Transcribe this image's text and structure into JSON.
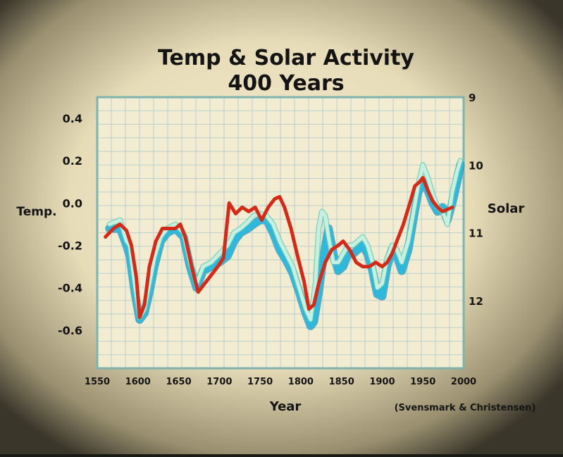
{
  "chart_data": {
    "type": "line",
    "title": "Temp & Solar Activity",
    "subtitle": "400 Years",
    "xlabel": "Year",
    "ylabel_left": "Temp.",
    "ylabel_right": "Solar",
    "credit": "(Svensmark & Christensen)",
    "xlim": [
      1550,
      2000
    ],
    "ylim_left": [
      -0.78,
      0.5
    ],
    "ylim_right": [
      13.0,
      9.0
    ],
    "right_axis_inverted": true,
    "x_ticks": [
      "1550",
      "1600",
      "1650",
      "1700",
      "1750",
      "1800",
      "1850",
      "1900",
      "1950",
      "2000"
    ],
    "y_left_ticks": [
      "0.4",
      "0.2",
      "0.0",
      "-0.2",
      "-0.4",
      "-0.6"
    ],
    "y_left_tick_values": [
      0.4,
      0.2,
      0.0,
      -0.2,
      -0.4,
      -0.6
    ],
    "y_right_ticks": [
      "9",
      "10",
      "11",
      "12"
    ],
    "y_right_tick_values": [
      9,
      10,
      11,
      12
    ],
    "grid": true,
    "series": [
      {
        "axis": "left",
        "color": "#2fb8de",
        "x": [
          1565,
          1578,
          1586,
          1590,
          1596,
          1602,
          1608,
          1614,
          1620,
          1628,
          1636,
          1646,
          1656,
          1664,
          1672,
          1680,
          1690,
          1700,
          1710,
          1718,
          1726,
          1735,
          1742,
          1750,
          1758,
          1766,
          1774,
          1782,
          1790,
          1798,
          1806,
          1812,
          1816,
          1822,
          1828,
          1834,
          1840,
          1846,
          1852,
          1858,
          1864,
          1870,
          1876,
          1882,
          1888,
          1894,
          1900,
          1906,
          1912,
          1918,
          1924,
          1932,
          1938,
          1944,
          1950,
          1956,
          1962,
          1968,
          1974,
          1980,
          1986,
          1992,
          1996
        ],
        "y": [
          -0.12,
          -0.12,
          -0.2,
          -0.25,
          -0.42,
          -0.55,
          -0.52,
          -0.42,
          -0.3,
          -0.18,
          -0.14,
          -0.12,
          -0.16,
          -0.3,
          -0.4,
          -0.32,
          -0.3,
          -0.28,
          -0.25,
          -0.18,
          -0.14,
          -0.12,
          -0.1,
          -0.08,
          -0.08,
          -0.14,
          -0.22,
          -0.27,
          -0.33,
          -0.42,
          -0.52,
          -0.58,
          -0.56,
          -0.42,
          -0.25,
          -0.12,
          -0.24,
          -0.32,
          -0.3,
          -0.24,
          -0.24,
          -0.22,
          -0.2,
          -0.24,
          -0.32,
          -0.43,
          -0.44,
          -0.3,
          -0.22,
          -0.25,
          -0.32,
          -0.22,
          -0.08,
          0.05,
          0.1,
          0.06,
          0.0,
          -0.04,
          -0.02,
          -0.08,
          0.0,
          0.1,
          0.18
        ]
      },
      {
        "axis": "left",
        "color": "#c8f0e0",
        "x": [
          1565,
          1578,
          1586,
          1590,
          1596,
          1602,
          1608,
          1614,
          1620,
          1628,
          1636,
          1646,
          1656,
          1664,
          1672,
          1680,
          1690,
          1700,
          1710,
          1718,
          1726,
          1735,
          1742,
          1750,
          1758,
          1766,
          1774,
          1782,
          1790,
          1798,
          1806,
          1812,
          1818,
          1822,
          1826,
          1830,
          1834,
          1840,
          1846,
          1852,
          1858,
          1864,
          1870,
          1876,
          1882,
          1888,
          1894,
          1900,
          1906,
          1912,
          1918,
          1924,
          1932,
          1938,
          1944,
          1950,
          1956,
          1962,
          1968,
          1974,
          1980,
          1986,
          1992,
          1996
        ],
        "y": [
          -0.1,
          -0.08,
          -0.18,
          -0.2,
          -0.38,
          -0.54,
          -0.5,
          -0.38,
          -0.26,
          -0.16,
          -0.12,
          -0.1,
          -0.14,
          -0.28,
          -0.38,
          -0.3,
          -0.28,
          -0.24,
          -0.2,
          -0.14,
          -0.12,
          -0.09,
          -0.06,
          -0.05,
          -0.06,
          -0.1,
          -0.18,
          -0.24,
          -0.3,
          -0.4,
          -0.5,
          -0.55,
          -0.38,
          -0.12,
          -0.04,
          -0.06,
          -0.16,
          -0.28,
          -0.28,
          -0.24,
          -0.2,
          -0.2,
          -0.18,
          -0.16,
          -0.2,
          -0.28,
          -0.4,
          -0.38,
          -0.26,
          -0.2,
          -0.22,
          -0.28,
          -0.18,
          -0.05,
          0.08,
          0.18,
          0.12,
          0.04,
          -0.02,
          -0.04,
          -0.1,
          0.05,
          0.15,
          0.2
        ]
      },
      {
        "axis": "left",
        "color": "#d42a18",
        "x": [
          1560,
          1570,
          1578,
          1586,
          1592,
          1598,
          1602,
          1608,
          1614,
          1622,
          1630,
          1638,
          1646,
          1652,
          1658,
          1666,
          1674,
          1682,
          1690,
          1698,
          1705,
          1712,
          1720,
          1728,
          1736,
          1744,
          1752,
          1760,
          1768,
          1774,
          1780,
          1788,
          1796,
          1804,
          1810,
          1816,
          1822,
          1830,
          1838,
          1846,
          1852,
          1860,
          1868,
          1876,
          1884,
          1892,
          1900,
          1906,
          1912,
          1918,
          1926,
          1934,
          1940,
          1946,
          1950,
          1956,
          1962,
          1968,
          1974,
          1980,
          1986
        ],
        "y": [
          -0.16,
          -0.12,
          -0.1,
          -0.13,
          -0.2,
          -0.35,
          -0.54,
          -0.48,
          -0.3,
          -0.18,
          -0.12,
          -0.12,
          -0.12,
          -0.1,
          -0.16,
          -0.3,
          -0.42,
          -0.38,
          -0.34,
          -0.3,
          -0.26,
          0.0,
          -0.05,
          -0.02,
          -0.04,
          -0.02,
          -0.08,
          -0.02,
          0.02,
          0.03,
          -0.02,
          -0.12,
          -0.25,
          -0.37,
          -0.5,
          -0.48,
          -0.38,
          -0.28,
          -0.22,
          -0.2,
          -0.18,
          -0.22,
          -0.28,
          -0.3,
          -0.3,
          -0.28,
          -0.3,
          -0.28,
          -0.24,
          -0.18,
          -0.1,
          0.0,
          0.08,
          0.1,
          0.12,
          0.06,
          0.01,
          -0.02,
          -0.04,
          -0.03,
          -0.02
        ]
      }
    ]
  }
}
